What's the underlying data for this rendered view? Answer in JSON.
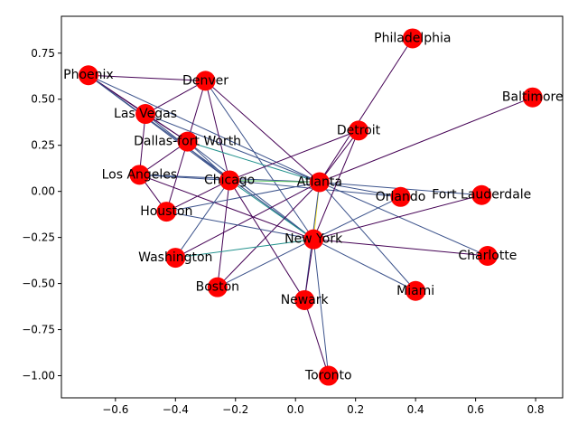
{
  "chart_data": {
    "type": "network",
    "title": "",
    "xlabel": "",
    "ylabel": "",
    "xlim": [
      -0.78,
      0.89
    ],
    "ylim": [
      -1.12,
      0.95
    ],
    "x_ticks": [
      -0.6,
      -0.4,
      -0.2,
      0.0,
      0.2,
      0.4,
      0.6,
      0.8
    ],
    "y_ticks": [
      0.75,
      0.5,
      0.25,
      0.0,
      -0.25,
      -0.5,
      -0.75,
      -1.0
    ],
    "x_tick_labels": [
      "−0.6",
      "−0.4",
      "−0.2",
      "0.0",
      "0.2",
      "0.4",
      "0.6",
      "0.8"
    ],
    "y_tick_labels": [
      "0.75",
      "0.50",
      "0.25",
      "0.00",
      "−0.25",
      "−0.50",
      "−0.75",
      "−1.00"
    ],
    "grid": false,
    "node_color": "#ff0000",
    "edge_colormap": [
      "#440154",
      "#3b528b",
      "#21918c",
      "#5ec962",
      "#fde725"
    ],
    "nodes": [
      {
        "name": "Philadelphia",
        "x": 0.39,
        "y": 0.83
      },
      {
        "name": "Phoenix",
        "x": -0.69,
        "y": 0.63
      },
      {
        "name": "Denver",
        "x": -0.3,
        "y": 0.6
      },
      {
        "name": "Baltimore",
        "x": 0.79,
        "y": 0.51
      },
      {
        "name": "Las Vegas",
        "x": -0.5,
        "y": 0.42
      },
      {
        "name": "Detroit",
        "x": 0.21,
        "y": 0.33
      },
      {
        "name": "Dallas-fort Worth",
        "x": -0.36,
        "y": 0.27
      },
      {
        "name": "Los Angeles",
        "x": -0.52,
        "y": 0.09
      },
      {
        "name": "Chicago",
        "x": -0.22,
        "y": 0.06
      },
      {
        "name": "Atlanta",
        "x": 0.08,
        "y": 0.05
      },
      {
        "name": "Orlando",
        "x": 0.35,
        "y": -0.03
      },
      {
        "name": "Fort Lauderdale",
        "x": 0.62,
        "y": -0.02
      },
      {
        "name": "Houston",
        "x": -0.43,
        "y": -0.11
      },
      {
        "name": "New York",
        "x": 0.06,
        "y": -0.26
      },
      {
        "name": "Charlotte",
        "x": 0.64,
        "y": -0.35
      },
      {
        "name": "Washington",
        "x": -0.4,
        "y": -0.36
      },
      {
        "name": "Boston",
        "x": -0.26,
        "y": -0.52
      },
      {
        "name": "Miami",
        "x": 0.4,
        "y": -0.54
      },
      {
        "name": "Newark",
        "x": 0.03,
        "y": -0.59
      },
      {
        "name": "Toronto",
        "x": 0.11,
        "y": -1.0
      }
    ],
    "edges": [
      {
        "source": "Phoenix",
        "target": "Denver",
        "weight": 0
      },
      {
        "source": "Phoenix",
        "target": "Las Vegas",
        "weight": 0
      },
      {
        "source": "Phoenix",
        "target": "Dallas-fort Worth",
        "weight": 0
      },
      {
        "source": "Phoenix",
        "target": "Atlanta",
        "weight": 1
      },
      {
        "source": "Phoenix",
        "target": "Chicago",
        "weight": 1
      },
      {
        "source": "Phoenix",
        "target": "New York",
        "weight": 1
      },
      {
        "source": "Denver",
        "target": "Las Vegas",
        "weight": 0
      },
      {
        "source": "Denver",
        "target": "Dallas-fort Worth",
        "weight": 0
      },
      {
        "source": "Denver",
        "target": "Chicago",
        "weight": 0
      },
      {
        "source": "Denver",
        "target": "Atlanta",
        "weight": 0
      },
      {
        "source": "Denver",
        "target": "New York",
        "weight": 1
      },
      {
        "source": "Las Vegas",
        "target": "Los Angeles",
        "weight": 0
      },
      {
        "source": "Las Vegas",
        "target": "Dallas-fort Worth",
        "weight": 0
      },
      {
        "source": "Las Vegas",
        "target": "Chicago",
        "weight": 1
      },
      {
        "source": "Las Vegas",
        "target": "Atlanta",
        "weight": 1
      },
      {
        "source": "Dallas-fort Worth",
        "target": "Los Angeles",
        "weight": 0
      },
      {
        "source": "Dallas-fort Worth",
        "target": "Houston",
        "weight": 0
      },
      {
        "source": "Dallas-fort Worth",
        "target": "Chicago",
        "weight": 1
      },
      {
        "source": "Dallas-fort Worth",
        "target": "Atlanta",
        "weight": 2
      },
      {
        "source": "Dallas-fort Worth",
        "target": "New York",
        "weight": 1
      },
      {
        "source": "Los Angeles",
        "target": "Houston",
        "weight": 0
      },
      {
        "source": "Los Angeles",
        "target": "Chicago",
        "weight": 1
      },
      {
        "source": "Los Angeles",
        "target": "Atlanta",
        "weight": 1
      },
      {
        "source": "Los Angeles",
        "target": "New York",
        "weight": 0
      },
      {
        "source": "Chicago",
        "target": "Houston",
        "weight": 0
      },
      {
        "source": "Chicago",
        "target": "Detroit",
        "weight": 0
      },
      {
        "source": "Chicago",
        "target": "Atlanta",
        "weight": 3
      },
      {
        "source": "Chicago",
        "target": "New York",
        "weight": 2
      },
      {
        "source": "Chicago",
        "target": "Washington",
        "weight": 1
      },
      {
        "source": "Chicago",
        "target": "Boston",
        "weight": 0
      },
      {
        "source": "Chicago",
        "target": "Newark",
        "weight": 0
      },
      {
        "source": "Chicago",
        "target": "Orlando",
        "weight": 1
      },
      {
        "source": "Atlanta",
        "target": "Philadelphia",
        "weight": 0
      },
      {
        "source": "Atlanta",
        "target": "Detroit",
        "weight": 0
      },
      {
        "source": "Atlanta",
        "target": "Baltimore",
        "weight": 0
      },
      {
        "source": "Atlanta",
        "target": "Orlando",
        "weight": 1
      },
      {
        "source": "Atlanta",
        "target": "Fort Lauderdale",
        "weight": 1
      },
      {
        "source": "Atlanta",
        "target": "New York",
        "weight": 4
      },
      {
        "source": "Atlanta",
        "target": "Charlotte",
        "weight": 1
      },
      {
        "source": "Atlanta",
        "target": "Miami",
        "weight": 1
      },
      {
        "source": "Atlanta",
        "target": "Houston",
        "weight": 1
      },
      {
        "source": "Atlanta",
        "target": "Washington",
        "weight": 0
      },
      {
        "source": "Atlanta",
        "target": "Boston",
        "weight": 0
      },
      {
        "source": "Atlanta",
        "target": "Newark",
        "weight": 1
      },
      {
        "source": "New York",
        "target": "Detroit",
        "weight": 0
      },
      {
        "source": "New York",
        "target": "Orlando",
        "weight": 1
      },
      {
        "source": "New York",
        "target": "Fort Lauderdale",
        "weight": 0
      },
      {
        "source": "New York",
        "target": "Charlotte",
        "weight": 0
      },
      {
        "source": "New York",
        "target": "Miami",
        "weight": 1
      },
      {
        "source": "New York",
        "target": "Washington",
        "weight": 2
      },
      {
        "source": "New York",
        "target": "Boston",
        "weight": 1
      },
      {
        "source": "New York",
        "target": "Newark",
        "weight": 0
      },
      {
        "source": "New York",
        "target": "Toronto",
        "weight": 1
      },
      {
        "source": "New York",
        "target": "Houston",
        "weight": 1
      },
      {
        "source": "Newark",
        "target": "Toronto",
        "weight": 0
      }
    ]
  }
}
